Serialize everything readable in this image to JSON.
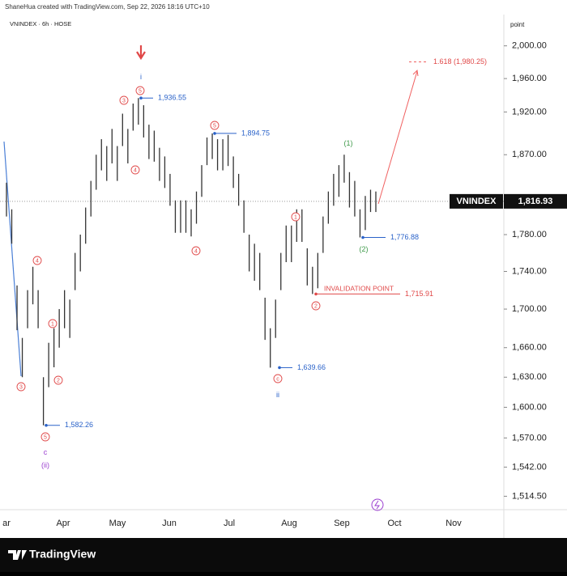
{
  "header": "ShaneHua created with TradingView.com, Sep 22, 2026 18:16 UTC+10",
  "footer": "TradingView",
  "chart_data": {
    "type": "ohlc",
    "symbol": "VNINDEX · 6h · HOSE",
    "axis_unit": "point",
    "log_scale": true,
    "ylim": [
      1502,
      2039
    ],
    "yticks": [
      {
        "value": 2000,
        "label": "2,000.00"
      },
      {
        "value": 1960,
        "label": "1,960.00"
      },
      {
        "value": 1920,
        "label": "1,920.00"
      },
      {
        "value": 1870,
        "label": "1,870.00"
      },
      {
        "value": 1780,
        "label": "1,780.00"
      },
      {
        "value": 1740,
        "label": "1,740.00"
      },
      {
        "value": 1700,
        "label": "1,700.00"
      },
      {
        "value": 1660,
        "label": "1,660.00"
      },
      {
        "value": 1630,
        "label": "1,630.00"
      },
      {
        "value": 1600,
        "label": "1,600.00"
      },
      {
        "value": 1570,
        "label": "1,570.00"
      },
      {
        "value": 1542,
        "label": "1,542.00"
      },
      {
        "value": 1514.5,
        "label": "1,514.50"
      }
    ],
    "x_labels": [
      "ar",
      "Apr",
      "May",
      "Jun",
      "Jul",
      "Aug",
      "Sep",
      "Oct",
      "Nov"
    ],
    "color": "#333333",
    "last_price": {
      "name": "VNINDEX",
      "value": 1816.93,
      "label": "1,816.93"
    },
    "highs": [
      1838,
      1808,
      1725,
      1670,
      1720,
      1745,
      1720,
      1630,
      1665,
      1680,
      1700,
      1720,
      1710,
      1760,
      1780,
      1810,
      1840,
      1870,
      1888,
      1880,
      1900,
      1880,
      1918,
      1900,
      1930,
      1936.55,
      1928,
      1905,
      1898,
      1878,
      1868,
      1848,
      1818,
      1818,
      1818,
      1808,
      1828,
      1858,
      1890,
      1894.75,
      1888,
      1888,
      1893,
      1868,
      1848,
      1818,
      1780,
      1770,
      1760,
      1712,
      1680,
      1710,
      1760,
      1790,
      1790,
      1808,
      1808,
      1765,
      1745,
      1760,
      1800,
      1828,
      1848,
      1858,
      1870,
      1850,
      1840,
      1808,
      1823,
      1830,
      1828
    ],
    "lows": [
      1800,
      1770,
      1678,
      1630,
      1680,
      1705,
      1680,
      1582.26,
      1620,
      1640,
      1660,
      1680,
      1670,
      1720,
      1740,
      1770,
      1800,
      1830,
      1852,
      1840,
      1860,
      1840,
      1880,
      1860,
      1898,
      1905,
      1890,
      1865,
      1862,
      1840,
      1832,
      1812,
      1782,
      1782,
      1782,
      1778,
      1792,
      1822,
      1858,
      1865,
      1852,
      1852,
      1857,
      1832,
      1812,
      1782,
      1740,
      1730,
      1720,
      1668,
      1639.66,
      1670,
      1720,
      1750,
      1750,
      1772,
      1772,
      1725,
      1715.91,
      1722,
      1760,
      1792,
      1812,
      1822,
      1838,
      1810,
      1800,
      1776.88,
      1785,
      1805,
      1805
    ],
    "price_labels": [
      {
        "value": 1936.55,
        "label": "1,936.55"
      },
      {
        "value": 1894.75,
        "label": "1,894.75"
      },
      {
        "value": 1639.66,
        "label": "1,639.66"
      },
      {
        "value": 1582.26,
        "label": "1,582.26"
      },
      {
        "value": 1776.88,
        "label": "1,776.88"
      },
      {
        "value": 1715.91,
        "label": "1,715.91"
      }
    ],
    "invalidation": "INVALIDATION POINT",
    "target": {
      "value": 1980.25,
      "label": "1.618 (1,980.25)"
    },
    "wave_labels": [
      "3",
      "4",
      "1",
      "2",
      "5",
      "c",
      "(ii)",
      "3",
      "5",
      "i",
      "4",
      "4",
      "5",
      "c",
      "ii",
      "1",
      "2",
      "(1)",
      "(2)"
    ]
  }
}
